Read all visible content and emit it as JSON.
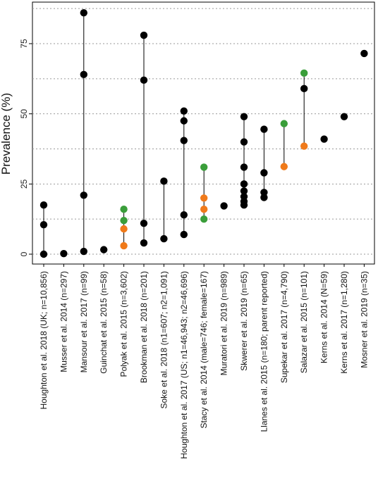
{
  "chart_data": {
    "type": "scatter",
    "title": "",
    "xlabel": "",
    "ylabel": "Prevalence (%)",
    "ylim": [
      -2,
      90
    ],
    "yticks": [
      0,
      25,
      50,
      75
    ],
    "grid": "horizontal dotted",
    "colors": {
      "black": "#000000",
      "green": "#3a9e3a",
      "orange": "#f07a1a"
    },
    "categories": [
      "Houghton et al. 2018 (UK; n=10,856)",
      "Musser et al. 2014 (n=297)",
      "Mansour et al. 2017 (n=99)",
      "Guinchat et al. 2015 (n=58)",
      "Polyak et al. 2015 (n=3,602)",
      "Brookman et al. 2018 (n=201)",
      "Soke et al. 2018  (n1=607; n2=1,091)",
      "Houghton et al. 2017 (US; n1=46,943; n2=46,696)",
      "Stacy et al. 2014 (male=746; female=167)",
      "Muratori et al. 2019 (n=989)",
      "Skwerer et al. 2019 (n=65)",
      "Llanes et al. 2015 (n=180; parent reported)",
      "Supekar et al. 2017 (n=4,790)",
      "Salazar et al. 2015 (n=101)",
      "Kerns et al. 2014 (N=59)",
      "Kerns et al. 2017 (n=1,280)",
      "Mosner et al. 2019 (n=35)"
    ],
    "points": [
      [
        {
          "y": 17.5,
          "c": "black"
        },
        {
          "y": 10.5,
          "c": "black"
        },
        {
          "y": 0,
          "c": "black"
        }
      ],
      [
        {
          "y": 0.2,
          "c": "black"
        }
      ],
      [
        {
          "y": 86,
          "c": "black"
        },
        {
          "y": 64,
          "c": "black"
        },
        {
          "y": 21,
          "c": "black"
        },
        {
          "y": 1,
          "c": "black"
        }
      ],
      [
        {
          "y": 1.6,
          "c": "black"
        }
      ],
      [
        {
          "y": 16,
          "c": "green"
        },
        {
          "y": 12,
          "c": "green"
        },
        {
          "y": 9,
          "c": "orange"
        },
        {
          "y": 3,
          "c": "orange"
        }
      ],
      [
        {
          "y": 78,
          "c": "black"
        },
        {
          "y": 62,
          "c": "black"
        },
        {
          "y": 11,
          "c": "black"
        },
        {
          "y": 4,
          "c": "black"
        }
      ],
      [
        {
          "y": 26,
          "c": "black"
        },
        {
          "y": 5.5,
          "c": "black"
        }
      ],
      [
        {
          "y": 51,
          "c": "black"
        },
        {
          "y": 47.5,
          "c": "black"
        },
        {
          "y": 40.5,
          "c": "black"
        },
        {
          "y": 14,
          "c": "black"
        },
        {
          "y": 7,
          "c": "black"
        }
      ],
      [
        {
          "y": 31,
          "c": "green"
        },
        {
          "y": 20,
          "c": "orange"
        },
        {
          "y": 16,
          "c": "orange"
        },
        {
          "y": 12.5,
          "c": "green"
        }
      ],
      [
        {
          "y": 17.2,
          "c": "black"
        }
      ],
      [
        {
          "y": 49,
          "c": "black"
        },
        {
          "y": 40,
          "c": "black"
        },
        {
          "y": 31,
          "c": "black"
        },
        {
          "y": 25,
          "c": "black"
        },
        {
          "y": 22.5,
          "c": "black"
        },
        {
          "y": 20.5,
          "c": "black"
        },
        {
          "y": 18.8,
          "c": "black"
        },
        {
          "y": 17.5,
          "c": "black"
        }
      ],
      [
        {
          "y": 44.5,
          "c": "black"
        },
        {
          "y": 29,
          "c": "black"
        },
        {
          "y": 22,
          "c": "black"
        },
        {
          "y": 20.2,
          "c": "black"
        }
      ],
      [
        {
          "y": 46.5,
          "c": "green"
        },
        {
          "y": 31.2,
          "c": "orange"
        }
      ],
      [
        {
          "y": 64.5,
          "c": "green"
        },
        {
          "y": 59,
          "c": "black"
        },
        {
          "y": 38.5,
          "c": "orange"
        }
      ],
      [
        {
          "y": 41,
          "c": "black"
        }
      ],
      [
        {
          "y": 49,
          "c": "black"
        }
      ],
      [
        {
          "y": 71.5,
          "c": "black"
        }
      ]
    ]
  }
}
